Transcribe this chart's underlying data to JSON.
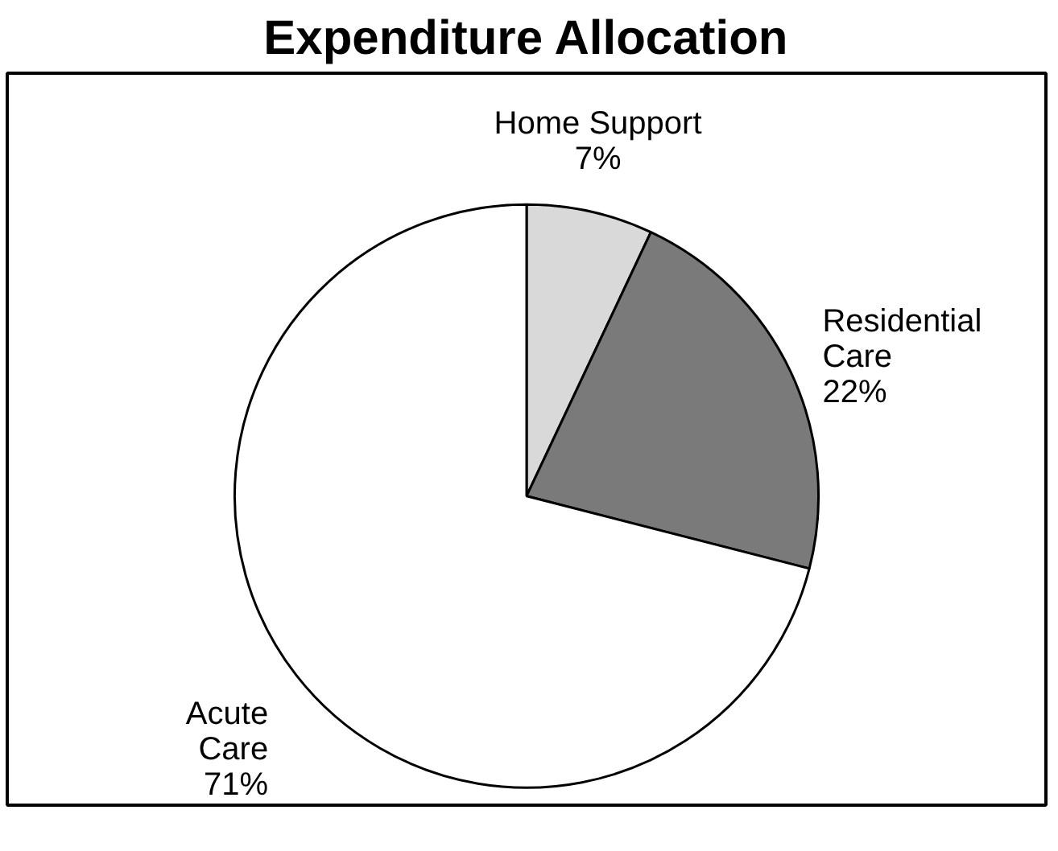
{
  "chart_data": {
    "type": "pie",
    "title": "Expenditure Allocation",
    "categories": [
      "Home Support",
      "Residential Care",
      "Acute Care"
    ],
    "values": [
      7,
      22,
      71
    ],
    "colors": [
      "#d9d9d9",
      "#7a7a7a",
      "#ffffff"
    ],
    "value_labels": [
      "7%",
      "22%",
      "71%"
    ],
    "legend": false
  }
}
